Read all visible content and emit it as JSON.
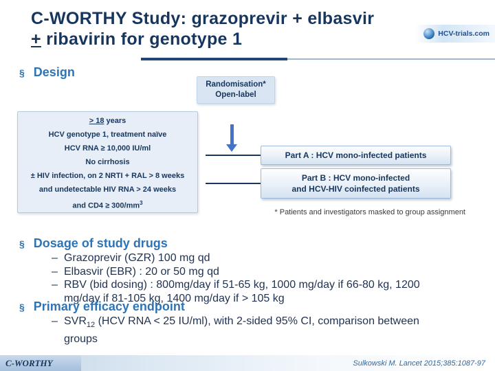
{
  "slide_title": {
    "line1": "C-WORTHY Study: grazoprevir + elbasvir",
    "line2_underlined": "+",
    "line2_rest": " ribavirin for genotype 1"
  },
  "logo": {
    "text": "HCV-trials.com"
  },
  "sections": {
    "design": {
      "marker": "§",
      "label": "Design"
    },
    "dosage": {
      "marker": "§",
      "label": "Dosage of study drugs"
    },
    "endpoint": {
      "marker": "§",
      "label": "Primary efficacy endpoint"
    }
  },
  "diagram": {
    "randomisation_line1": "Randomisation*",
    "randomisation_line2": "Open-label",
    "criteria_box": {
      "line1_underlined": "> 18",
      "line1_rest": " years",
      "line2": "HCV genotype 1, treatment naïve",
      "line3": "HCV RNA ≥ 10,000 IU/ml",
      "line4": "No cirrhosis",
      "line5": "± HIV infection, on 2 NRTI + RAL > 8 weeks",
      "line6": "and undetectable HIV RNA > 24 weeks",
      "line7_prefix": "and CD4 ≥ 300/mm",
      "line7_sup": "3"
    },
    "part_a": "Part A : HCV mono-infected patients",
    "part_b_line1": "Part B : HCV mono-infected",
    "part_b_line2": "and HCV-HIV coinfected patients",
    "footnote": "* Patients and investigators masked to group assignment"
  },
  "dosage": {
    "items": [
      {
        "dash": "–",
        "text": "Grazoprevir (GZR) 100 mg qd"
      },
      {
        "dash": "–",
        "text": "Elbasvir (EBR) : 20 or 50 mg qd"
      },
      {
        "dash": "–",
        "text": "RBV (bid dosing) : 800mg/day if 51-65 kg, 1000 mg/day if 66-80 kg, 1200 mg/day if 81-105 kg, 1400 mg/day if > 105 kg"
      }
    ]
  },
  "endpoint": {
    "dash": "–",
    "prefix": "SVR",
    "subscript": "12",
    "rest": " (HCV RNA < 25 IU/ml), with 2-sided 95% CI, comparison between groups"
  },
  "footer": {
    "brand": "C-WORTHY",
    "reference": "Sulkowski M. Lancet 2015;385:1087-97"
  },
  "colors": {
    "title_navy": "#17365D",
    "heading_blue": "#2E74B5",
    "body_text": "#1F3150",
    "box_fill": "#E7EEF7",
    "box_border": "#B3C9E2",
    "arrow_blue": "#4472C4",
    "connector_navy": "#17365D",
    "reference_blue": "#31699F"
  }
}
